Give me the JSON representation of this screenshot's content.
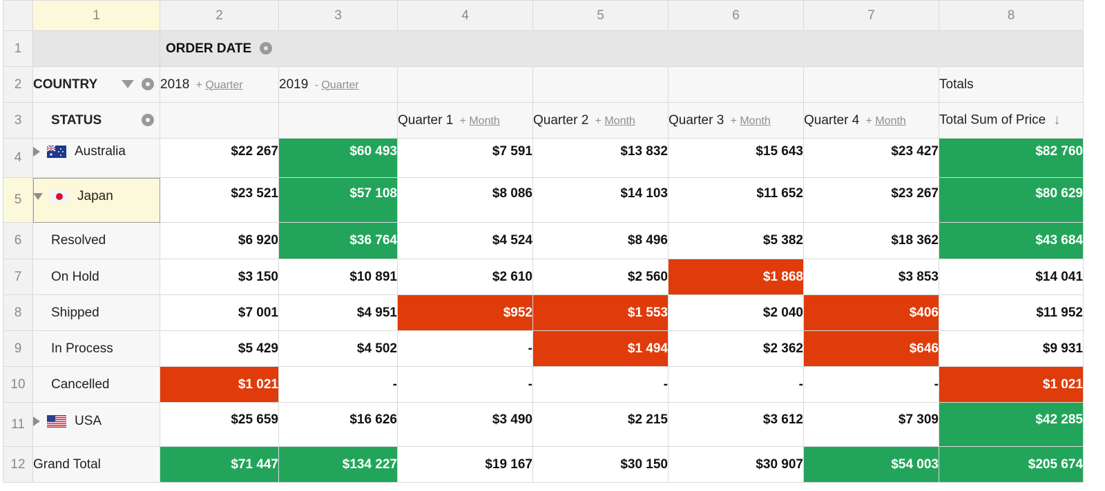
{
  "colors": {
    "positive": "#22a55b",
    "negative": "#e03b0a"
  },
  "columns": [
    "1",
    "2",
    "3",
    "4",
    "5",
    "6",
    "7",
    "8"
  ],
  "rows": [
    "1",
    "2",
    "3",
    "4",
    "5",
    "6",
    "7",
    "8",
    "9",
    "10",
    "11",
    "12"
  ],
  "header": {
    "order_date": "ORDER DATE",
    "country": "COUNTRY",
    "status": "STATUS",
    "year_2018": "2018",
    "year_2019": "2019",
    "expand_sign": "+",
    "collapse_sign": "-",
    "quarter_link": "Quarter",
    "totals": "Totals",
    "q1": "Quarter 1",
    "q2": "Quarter 2",
    "q3": "Quarter 3",
    "q4": "Quarter 4",
    "month_link": "Month",
    "total_sum": "Total Sum of Price"
  },
  "icons": {
    "gear": "gear-icon",
    "filter": "filter-icon",
    "sort": "sort-down-icon",
    "expand": "expand-triangle-icon",
    "collapse": "collapse-triangle-icon"
  },
  "data_rows": [
    {
      "label": "Australia",
      "flag": "australia-flag-icon",
      "values": [
        "$22 267",
        "$60 493",
        "$7 591",
        "$13 832",
        "$15 643",
        "$23 427",
        "$82 760"
      ]
    },
    {
      "label": "Japan",
      "flag": "japan-flag-icon",
      "values": [
        "$23 521",
        "$57 108",
        "$8 086",
        "$14 103",
        "$11 652",
        "$23 267",
        "$80 629"
      ]
    },
    {
      "label": "Resolved",
      "values": [
        "$6 920",
        "$36 764",
        "$4 524",
        "$8 496",
        "$5 382",
        "$18 362",
        "$43 684"
      ]
    },
    {
      "label": "On Hold",
      "values": [
        "$3 150",
        "$10 891",
        "$2 610",
        "$2 560",
        "$1 868",
        "$3 853",
        "$14 041"
      ]
    },
    {
      "label": "Shipped",
      "values": [
        "$7 001",
        "$4 951",
        "$952",
        "$1 553",
        "$2 040",
        "$406",
        "$11 952"
      ]
    },
    {
      "label": "In Process",
      "values": [
        "$5 429",
        "$4 502",
        "-",
        "$1 494",
        "$2 362",
        "$646",
        "$9 931"
      ]
    },
    {
      "label": "Cancelled",
      "values": [
        "$1 021",
        "-",
        "-",
        "-",
        "-",
        "-",
        "$1 021"
      ]
    },
    {
      "label": "USA",
      "flag": "usa-flag-icon",
      "values": [
        "$25 659",
        "$16 626",
        "$3 490",
        "$2 215",
        "$3 612",
        "$7 309",
        "$42 285"
      ]
    },
    {
      "label": "Grand Total",
      "values": [
        "$71 447",
        "$134 227",
        "$19 167",
        "$30 150",
        "$30 907",
        "$54 003",
        "$205 674"
      ]
    }
  ]
}
